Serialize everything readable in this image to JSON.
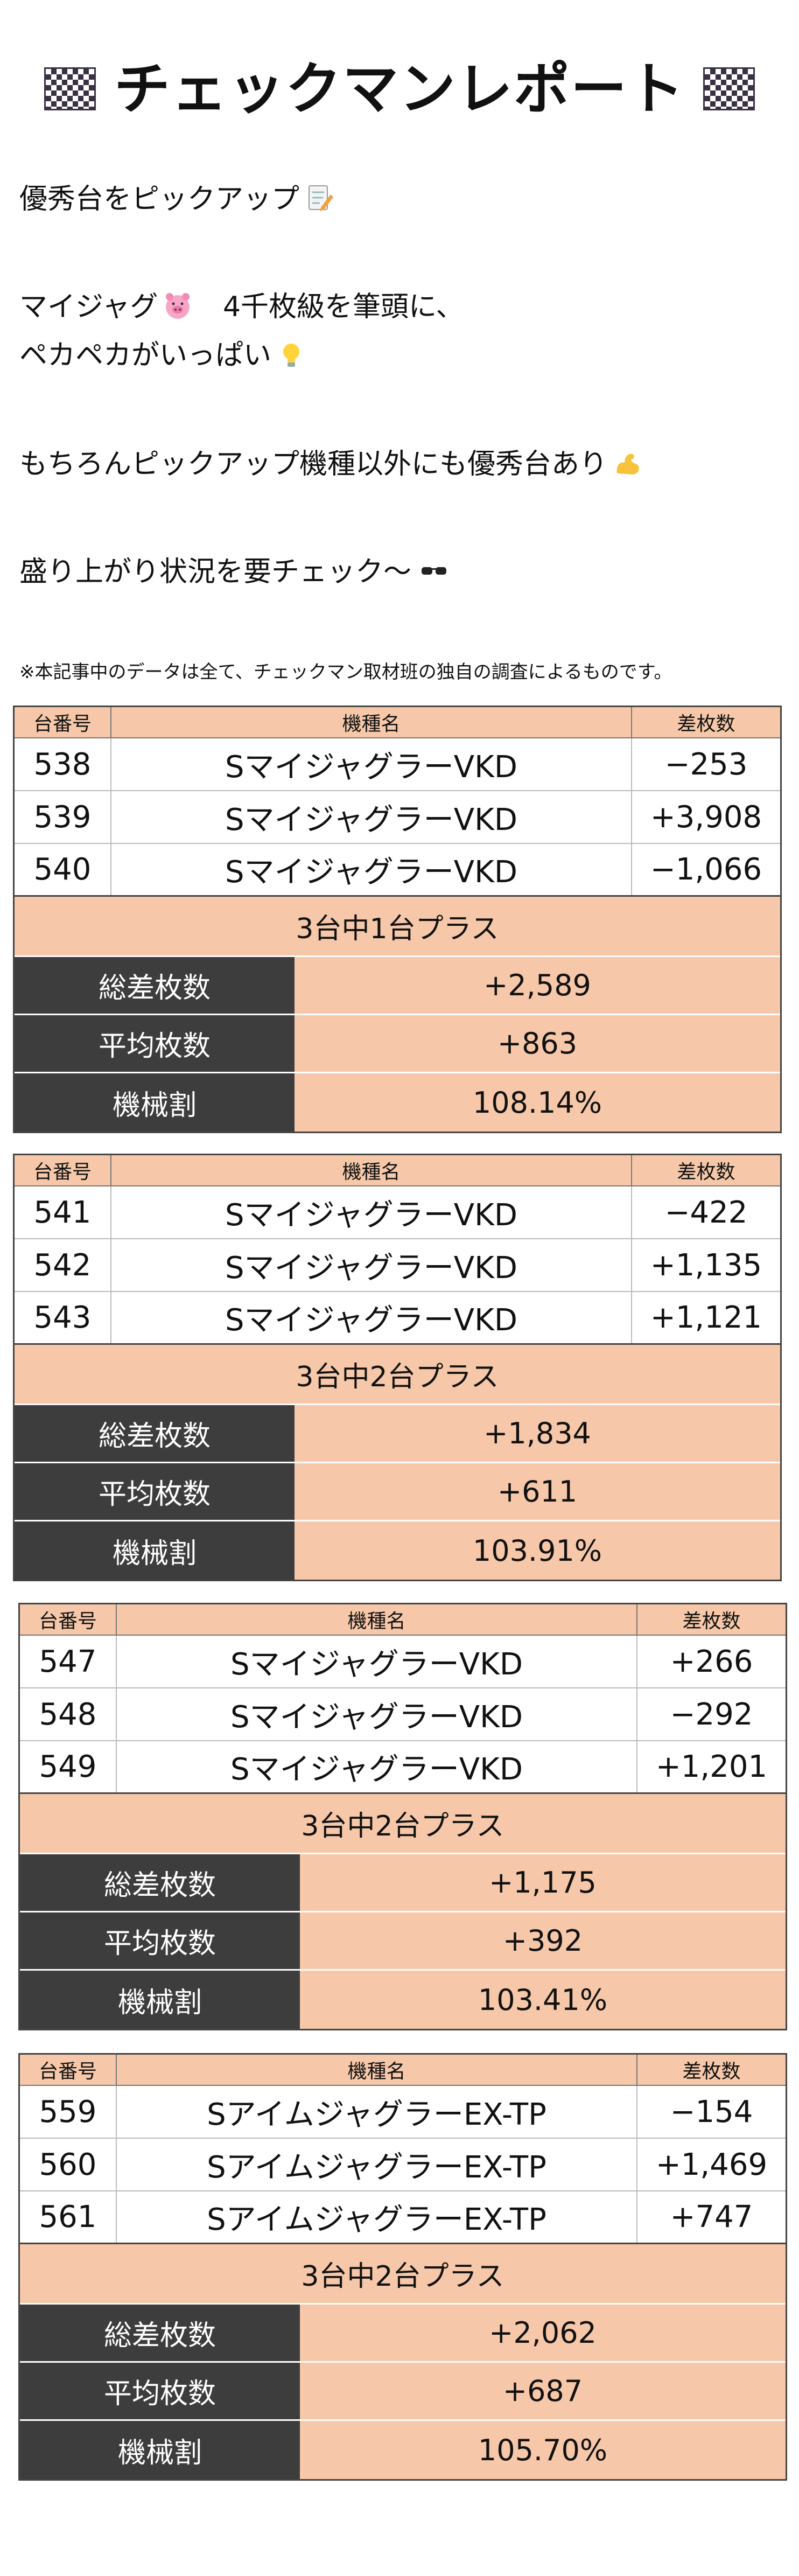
{
  "header": {
    "title": "チェックマンレポート"
  },
  "intro": {
    "line1": "優秀台をピックアップ",
    "line2": "マイジャグ",
    "line2b": "4千枚級を筆頭に、",
    "line3": "ペカペカがいっぱい",
    "line4": "もちろんピックアップ機種以外にも優秀台あり",
    "line5": "盛り上がり状況を要チェック〜"
  },
  "note": "※本記事中のデータは全て、チェックマン取材班の独自の調査によるものです。",
  "columns": {
    "no": "台番号",
    "model": "機種名",
    "diff": "差枚数"
  },
  "summary_labels": {
    "total": "総差枚数",
    "avg": "平均枚数",
    "rate": "機械割"
  },
  "groups": [
    {
      "rows": [
        {
          "no": "538",
          "model": "SマイジャグラーVKD",
          "diff": "−253"
        },
        {
          "no": "539",
          "model": "SマイジャグラーVKD",
          "diff": "+3,908"
        },
        {
          "no": "540",
          "model": "SマイジャグラーVKD",
          "diff": "−1,066"
        }
      ],
      "summary": {
        "title": "3台中1台プラス",
        "total": "+2,589",
        "avg": "+863",
        "rate": "108.14%"
      }
    },
    {
      "rows": [
        {
          "no": "541",
          "model": "SマイジャグラーVKD",
          "diff": "−422"
        },
        {
          "no": "542",
          "model": "SマイジャグラーVKD",
          "diff": "+1,135"
        },
        {
          "no": "543",
          "model": "SマイジャグラーVKD",
          "diff": "+1,121"
        }
      ],
      "summary": {
        "title": "3台中2台プラス",
        "total": "+1,834",
        "avg": "+611",
        "rate": "103.91%"
      }
    },
    {
      "rows": [
        {
          "no": "547",
          "model": "SマイジャグラーVKD",
          "diff": "+266"
        },
        {
          "no": "548",
          "model": "SマイジャグラーVKD",
          "diff": "−292"
        },
        {
          "no": "549",
          "model": "SマイジャグラーVKD",
          "diff": "+1,201"
        }
      ],
      "summary": {
        "title": "3台中2台プラス",
        "total": "+1,175",
        "avg": "+392",
        "rate": "103.41%"
      }
    },
    {
      "rows": [
        {
          "no": "559",
          "model": "SアイムジャグラーEX-TP",
          "diff": "−154"
        },
        {
          "no": "560",
          "model": "SアイムジャグラーEX-TP",
          "diff": "+1,469"
        },
        {
          "no": "561",
          "model": "SアイムジャグラーEX-TP",
          "diff": "+747"
        }
      ],
      "summary": {
        "title": "3台中2台プラス",
        "total": "+2,062",
        "avg": "+687",
        "rate": "105.70%"
      }
    }
  ]
}
